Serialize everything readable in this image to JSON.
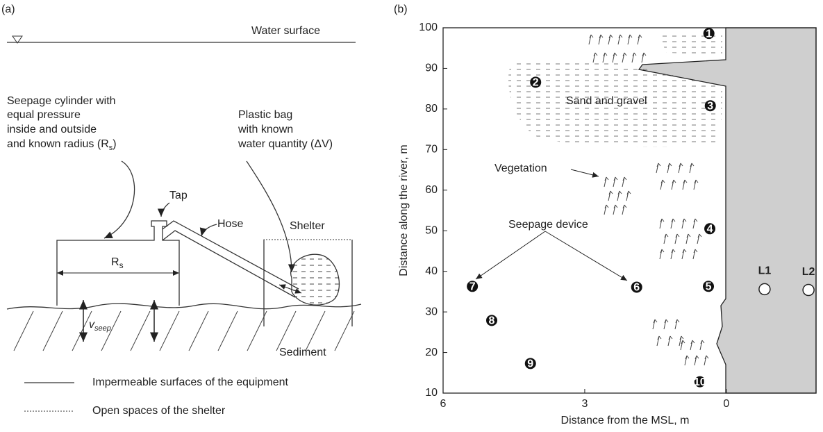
{
  "panel_a": {
    "label": "(a)",
    "water_surface": "Water surface",
    "cylinder_note": [
      "Seepage cylinder with",
      "equal pressure",
      "inside and outside"
    ],
    "cylinder_radius": {
      "text": "and known radius (R",
      "sub": "s",
      "close": ")"
    },
    "bag_note": [
      "Plastic bag",
      "with known",
      "water quantity (ΔV)"
    ],
    "tap": "Tap",
    "hose": "Hose",
    "shelter": "Shelter",
    "radius": {
      "text": "R",
      "sub": "s"
    },
    "velocity": {
      "text": "v",
      "sub": "seep"
    },
    "sediment": "Sediment",
    "legend": [
      "Impermeable surfaces of the equipment",
      "Open spaces of the shelter"
    ]
  },
  "panel_b": {
    "label": "(b)",
    "x_label": "Distance from the MSL, m",
    "y_label": "Distance along the river, m",
    "xlim": [
      6,
      -1.9
    ],
    "ylim": [
      10,
      100
    ],
    "xticks": [
      6,
      3,
      0
    ],
    "yticks": [
      10,
      20,
      30,
      40,
      50,
      60,
      70,
      80,
      90,
      100
    ],
    "sand_label": "Sand and gravel",
    "vegetation_label": "Vegetation",
    "device_label": "Seepage device",
    "points": [
      {
        "label": "1",
        "x": 0.37,
        "y": 98.6
      },
      {
        "label": "2",
        "x": 4.04,
        "y": 86.6
      },
      {
        "label": "3",
        "x": 0.34,
        "y": 80.8
      },
      {
        "label": "4",
        "x": 0.35,
        "y": 50.5
      },
      {
        "label": "5",
        "x": 0.38,
        "y": 36.3
      },
      {
        "label": "6",
        "x": 1.9,
        "y": 36.1
      },
      {
        "label": "7",
        "x": 5.38,
        "y": 36.3
      },
      {
        "label": "8",
        "x": 4.97,
        "y": 27.9
      },
      {
        "label": "9",
        "x": 4.15,
        "y": 17.3
      },
      {
        "label": "10",
        "x": 0.56,
        "y": 12.8
      }
    ],
    "wells": [
      {
        "label": "L1",
        "x": -0.81,
        "y": 35.6
      },
      {
        "label": "L2",
        "x": -1.74,
        "y": 35.4
      }
    ]
  }
}
